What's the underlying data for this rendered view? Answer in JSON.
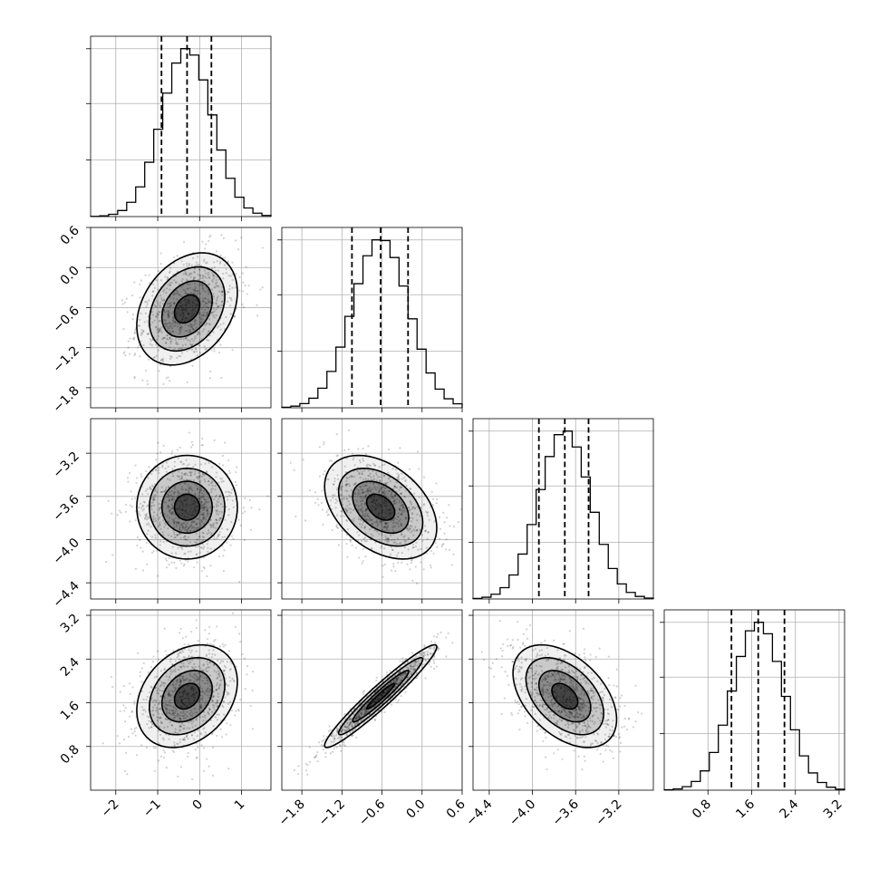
{
  "chart_data": {
    "type": "corner",
    "grid": true,
    "variables": [
      {
        "index": 0,
        "mean": -0.3,
        "sigma": 0.6,
        "range": [
          -2.6,
          1.7
        ],
        "quantiles": [
          -0.91,
          -0.3,
          0.28
        ],
        "ticks": [
          -2,
          -1,
          0,
          1
        ],
        "tick_labels": [
          "−2",
          "−1",
          "0",
          "1"
        ]
      },
      {
        "index": 1,
        "mean": -0.62,
        "sigma": 0.42,
        "range": [
          -2.1,
          0.6
        ],
        "quantiles": [
          -1.05,
          -0.62,
          -0.21
        ],
        "ticks": [
          -1.8,
          -1.2,
          -0.6,
          0.0,
          0.6
        ],
        "tick_labels": [
          "−1.8",
          "−1.2",
          "−0.6",
          "0.0",
          "0.6"
        ]
      },
      {
        "index": 2,
        "mean": -3.7,
        "sigma": 0.24,
        "range": [
          -4.55,
          -2.88
        ],
        "quantiles": [
          -3.94,
          -3.7,
          -3.48
        ],
        "ticks": [
          -4.4,
          -4.0,
          -3.6,
          -3.2
        ],
        "tick_labels": [
          "−4.4",
          "−4.0",
          "−3.6",
          "−3.2"
        ]
      },
      {
        "index": 3,
        "mean": 1.72,
        "sigma": 0.47,
        "range": [
          0.0,
          3.3
        ],
        "quantiles": [
          1.23,
          1.72,
          2.2
        ],
        "ticks": [
          0.8,
          1.6,
          2.4,
          3.2
        ],
        "tick_labels": [
          "0.8",
          "1.6",
          "2.4",
          "3.2"
        ]
      }
    ],
    "correlations": [
      [
        0,
        1,
        0.3
      ],
      [
        0,
        2,
        0.0
      ],
      [
        0,
        3,
        0.28
      ],
      [
        1,
        2,
        -0.4
      ],
      [
        1,
        3,
        0.96
      ],
      [
        2,
        3,
        -0.45
      ]
    ],
    "contour_levels_sigma": [
      0.5,
      1.0,
      1.5,
      2.0
    ],
    "quantile_levels": [
      0.16,
      0.5,
      0.84
    ],
    "histogram_bins": 20
  }
}
